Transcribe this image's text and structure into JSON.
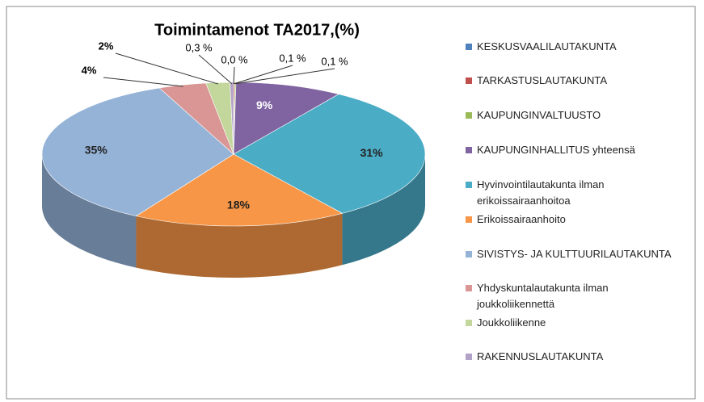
{
  "chart_data": {
    "type": "pie3d",
    "title": "Toimintamenot TA2017,(%)",
    "categories": [
      "KESKUSVAALILAUTAKUNTA",
      "TARKASTUSLAUTAKUNTA",
      "KAUPUNGINVALTUUSTO",
      "KAUPUNGINHALLITUS yhteensä",
      "Hyvinvointilautakunta ilman erikoissairaanhoitoa",
      "Erikoissairaanhoito",
      "SIVISTYS- JA KULTTUURILAUTAKUNTA",
      "Yhdyskuntalautakunta ilman joukkoliikennettä",
      "Joukkoliikenne",
      "RAKENNUSLAUTAKUNTA"
    ],
    "values": [
      0.0,
      0.1,
      0.1,
      9,
      31,
      18,
      35,
      4,
      2,
      0.3
    ],
    "value_labels": [
      "0,0 %",
      "0,1 %",
      "0,1 %",
      "9%",
      "31%",
      "18%",
      "35%",
      "4%",
      "2%",
      "0,3 %"
    ],
    "colors": [
      "#4f81bd",
      "#c0504d",
      "#9bbb59",
      "#8064a2",
      "#4bacc6",
      "#f79646",
      "#95b3d7",
      "#d99694",
      "#c3d69b",
      "#b2a2c7"
    ],
    "legend": "right"
  }
}
